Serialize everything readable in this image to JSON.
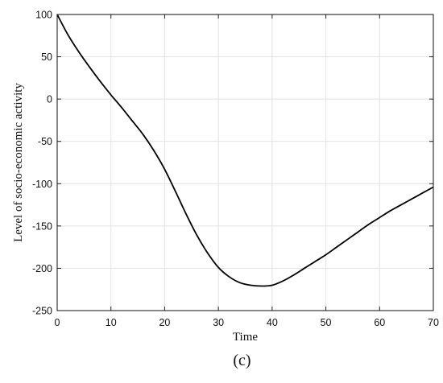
{
  "chart_data": {
    "type": "line",
    "title": "",
    "xlabel": "Time",
    "ylabel": "Level of socio-economic activity",
    "panel_label": "(c)",
    "xlim": [
      0,
      70
    ],
    "ylim": [
      -250,
      100
    ],
    "xticks": [
      0,
      10,
      20,
      30,
      40,
      50,
      60,
      70
    ],
    "yticks": [
      100,
      50,
      0,
      -50,
      -100,
      -150,
      -200,
      -250
    ],
    "grid": true,
    "series": [
      {
        "color": "#000000",
        "x": [
          0,
          2,
          4,
          6,
          8,
          10,
          12,
          14,
          16,
          18,
          20,
          22,
          24,
          26,
          28,
          30,
          32,
          34,
          36,
          38,
          40,
          42,
          44,
          46,
          48,
          50,
          52,
          54,
          56,
          58,
          60,
          62,
          64,
          66,
          68,
          70
        ],
        "y": [
          100,
          76,
          56,
          38,
          21,
          5,
          -10,
          -26,
          -42,
          -61,
          -83,
          -109,
          -136,
          -161,
          -182,
          -199,
          -210,
          -217,
          -220,
          -221,
          -220,
          -215,
          -208,
          -200,
          -192,
          -184,
          -175,
          -166,
          -157,
          -148,
          -140,
          -132,
          -125,
          -118,
          -111,
          -104
        ]
      }
    ]
  }
}
